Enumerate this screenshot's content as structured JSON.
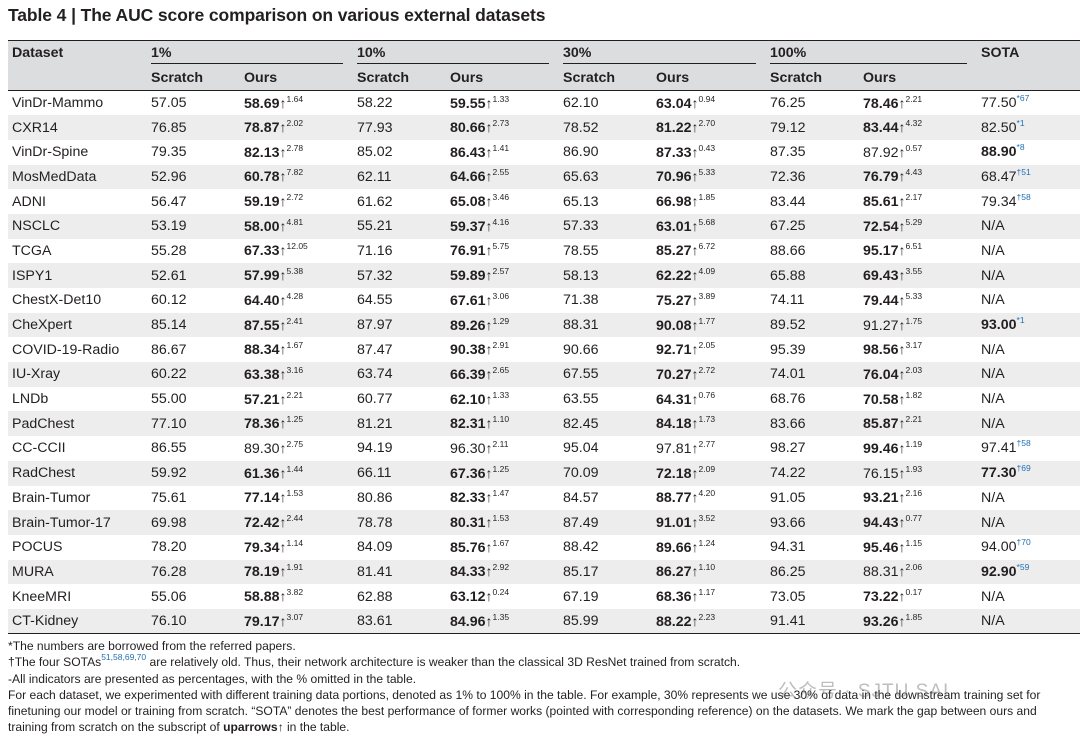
{
  "title": "Table 4 | The AUC score comparison on various external datasets",
  "header": {
    "dataset": "Dataset",
    "groups": [
      "1%",
      "10%",
      "30%",
      "100%"
    ],
    "sota": "SOTA",
    "scratch": "Scratch",
    "ours": "Ours"
  },
  "rows": [
    {
      "name": "VinDr-Mammo",
      "cells": [
        {
          "s": "57.05",
          "o": "58.69",
          "d": "1.64",
          "ob": true
        },
        {
          "s": "58.22",
          "o": "59.55",
          "d": "1.33",
          "ob": true
        },
        {
          "s": "62.10",
          "o": "63.04",
          "d": "0.94",
          "ob": true
        },
        {
          "s": "76.25",
          "o": "78.46",
          "d": "2.21",
          "ob": true
        }
      ],
      "sota": "77.50",
      "sref": "*67",
      "sb": false
    },
    {
      "name": "CXR14",
      "cells": [
        {
          "s": "76.85",
          "o": "78.87",
          "d": "2.02",
          "ob": true
        },
        {
          "s": "77.93",
          "o": "80.66",
          "d": "2.73",
          "ob": true
        },
        {
          "s": "78.52",
          "o": "81.22",
          "d": "2.70",
          "ob": true
        },
        {
          "s": "79.12",
          "o": "83.44",
          "d": "4.32",
          "ob": true
        }
      ],
      "sota": "82.50",
      "sref": "*1",
      "sb": false
    },
    {
      "name": "VinDr-Spine",
      "cells": [
        {
          "s": "79.35",
          "o": "82.13",
          "d": "2.78",
          "ob": true
        },
        {
          "s": "85.02",
          "o": "86.43",
          "d": "1.41",
          "ob": true
        },
        {
          "s": "86.90",
          "o": "87.33",
          "d": "0.43",
          "ob": true
        },
        {
          "s": "87.35",
          "o": "87.92",
          "d": "0.57",
          "ob": false
        }
      ],
      "sota": "88.90",
      "sref": "*8",
      "sb": true
    },
    {
      "name": "MosMedData",
      "cells": [
        {
          "s": "52.96",
          "o": "60.78",
          "d": "7.82",
          "ob": true
        },
        {
          "s": "62.11",
          "o": "64.66",
          "d": "2.55",
          "ob": true
        },
        {
          "s": "65.63",
          "o": "70.96",
          "d": "5.33",
          "ob": true
        },
        {
          "s": "72.36",
          "o": "76.79",
          "d": "4.43",
          "ob": true
        }
      ],
      "sota": "68.47",
      "sref": "†51",
      "sb": false
    },
    {
      "name": "ADNI",
      "cells": [
        {
          "s": "56.47",
          "o": "59.19",
          "d": "2.72",
          "ob": true
        },
        {
          "s": "61.62",
          "o": "65.08",
          "d": "3.46",
          "ob": true
        },
        {
          "s": "65.13",
          "o": "66.98",
          "d": "1.85",
          "ob": true
        },
        {
          "s": "83.44",
          "o": "85.61",
          "d": "2.17",
          "ob": true
        }
      ],
      "sota": "79.34",
      "sref": "†58",
      "sb": false
    },
    {
      "name": "NSCLC",
      "cells": [
        {
          "s": "53.19",
          "o": "58.00",
          "d": "4.81",
          "ob": true
        },
        {
          "s": "55.21",
          "o": "59.37",
          "d": "4.16",
          "ob": true
        },
        {
          "s": "57.33",
          "o": "63.01",
          "d": "5.68",
          "ob": true
        },
        {
          "s": "67.25",
          "o": "72.54",
          "d": "5.29",
          "ob": true
        }
      ],
      "sota": "N/A",
      "sref": "",
      "sb": false
    },
    {
      "name": "TCGA",
      "cells": [
        {
          "s": "55.28",
          "o": "67.33",
          "d": "12.05",
          "ob": true
        },
        {
          "s": "71.16",
          "o": "76.91",
          "d": "5.75",
          "ob": true
        },
        {
          "s": "78.55",
          "o": "85.27",
          "d": "6.72",
          "ob": true
        },
        {
          "s": "88.66",
          "o": "95.17",
          "d": "6.51",
          "ob": true
        }
      ],
      "sota": "N/A",
      "sref": "",
      "sb": false
    },
    {
      "name": "ISPY1",
      "cells": [
        {
          "s": "52.61",
          "o": "57.99",
          "d": "5.38",
          "ob": true
        },
        {
          "s": "57.32",
          "o": "59.89",
          "d": "2.57",
          "ob": true
        },
        {
          "s": "58.13",
          "o": "62.22",
          "d": "4.09",
          "ob": true
        },
        {
          "s": "65.88",
          "o": "69.43",
          "d": "3.55",
          "ob": true
        }
      ],
      "sota": "N/A",
      "sref": "",
      "sb": false
    },
    {
      "name": "ChestX-Det10",
      "cells": [
        {
          "s": "60.12",
          "o": "64.40",
          "d": "4.28",
          "ob": true
        },
        {
          "s": "64.55",
          "o": "67.61",
          "d": "3.06",
          "ob": true
        },
        {
          "s": "71.38",
          "o": "75.27",
          "d": "3.89",
          "ob": true
        },
        {
          "s": "74.11",
          "o": "79.44",
          "d": "5.33",
          "ob": true
        }
      ],
      "sota": "N/A",
      "sref": "",
      "sb": false
    },
    {
      "name": "CheXpert",
      "cells": [
        {
          "s": "85.14",
          "o": "87.55",
          "d": "2.41",
          "ob": true
        },
        {
          "s": "87.97",
          "o": "89.26",
          "d": "1.29",
          "ob": true
        },
        {
          "s": "88.31",
          "o": "90.08",
          "d": "1.77",
          "ob": true
        },
        {
          "s": "89.52",
          "o": "91.27",
          "d": "1.75",
          "ob": false
        }
      ],
      "sota": "93.00",
      "sref": "*1",
      "sb": true
    },
    {
      "name": "COVID-19-Radio",
      "cells": [
        {
          "s": "86.67",
          "o": "88.34",
          "d": "1.67",
          "ob": true
        },
        {
          "s": "87.47",
          "o": "90.38",
          "d": "2.91",
          "ob": true
        },
        {
          "s": "90.66",
          "o": "92.71",
          "d": "2.05",
          "ob": true
        },
        {
          "s": "95.39",
          "o": "98.56",
          "d": "3.17",
          "ob": true
        }
      ],
      "sota": "N/A",
      "sref": "",
      "sb": false
    },
    {
      "name": "IU-Xray",
      "cells": [
        {
          "s": "60.22",
          "o": "63.38",
          "d": "3.16",
          "ob": true
        },
        {
          "s": "63.74",
          "o": "66.39",
          "d": "2.65",
          "ob": true
        },
        {
          "s": "67.55",
          "o": "70.27",
          "d": "2.72",
          "ob": true
        },
        {
          "s": "74.01",
          "o": "76.04",
          "d": "2.03",
          "ob": true
        }
      ],
      "sota": "N/A",
      "sref": "",
      "sb": false
    },
    {
      "name": "LNDb",
      "cells": [
        {
          "s": "55.00",
          "o": "57.21",
          "d": "2.21",
          "ob": true
        },
        {
          "s": "60.77",
          "o": "62.10",
          "d": "1.33",
          "ob": true
        },
        {
          "s": "63.55",
          "o": "64.31",
          "d": "0.76",
          "ob": true
        },
        {
          "s": "68.76",
          "o": "70.58",
          "d": "1.82",
          "ob": true
        }
      ],
      "sota": "N/A",
      "sref": "",
      "sb": false
    },
    {
      "name": "PadChest",
      "cells": [
        {
          "s": "77.10",
          "o": "78.36",
          "d": "1.25",
          "ob": true
        },
        {
          "s": "81.21",
          "o": "82.31",
          "d": "1.10",
          "ob": true
        },
        {
          "s": "82.45",
          "o": "84.18",
          "d": "1.73",
          "ob": true
        },
        {
          "s": "83.66",
          "o": "85.87",
          "d": "2.21",
          "ob": true
        }
      ],
      "sota": "N/A",
      "sref": "",
      "sb": false
    },
    {
      "name": "CC-CCII",
      "cells": [
        {
          "s": "86.55",
          "o": "89.30",
          "d": "2.75",
          "ob": false
        },
        {
          "s": "94.19",
          "o": "96.30",
          "d": "2.11",
          "ob": false
        },
        {
          "s": "95.04",
          "o": "97.81",
          "d": "2.77",
          "ob": false
        },
        {
          "s": "98.27",
          "o": "99.46",
          "d": "1.19",
          "ob": true
        }
      ],
      "sota": "97.41",
      "sref": "†58",
      "sb": false
    },
    {
      "name": "RadChest",
      "cells": [
        {
          "s": "59.92",
          "o": "61.36",
          "d": "1.44",
          "ob": true
        },
        {
          "s": "66.11",
          "o": "67.36",
          "d": "1.25",
          "ob": true
        },
        {
          "s": "70.09",
          "o": "72.18",
          "d": "2.09",
          "ob": true
        },
        {
          "s": "74.22",
          "o": "76.15",
          "d": "1.93",
          "ob": false
        }
      ],
      "sota": "77.30",
      "sref": "†69",
      "sb": true
    },
    {
      "name": "Brain-Tumor",
      "cells": [
        {
          "s": "75.61",
          "o": "77.14",
          "d": "1.53",
          "ob": true
        },
        {
          "s": "80.86",
          "o": "82.33",
          "d": "1.47",
          "ob": true
        },
        {
          "s": "84.57",
          "o": "88.77",
          "d": "4.20",
          "ob": true
        },
        {
          "s": "91.05",
          "o": "93.21",
          "d": "2.16",
          "ob": true
        }
      ],
      "sota": "N/A",
      "sref": "",
      "sb": false
    },
    {
      "name": "Brain-Tumor-17",
      "cells": [
        {
          "s": "69.98",
          "o": "72.42",
          "d": "2.44",
          "ob": true
        },
        {
          "s": "78.78",
          "o": "80.31",
          "d": "1.53",
          "ob": true
        },
        {
          "s": "87.49",
          "o": "91.01",
          "d": "3.52",
          "ob": true
        },
        {
          "s": "93.66",
          "o": "94.43",
          "d": "0.77",
          "ob": true
        }
      ],
      "sota": "N/A",
      "sref": "",
      "sb": false
    },
    {
      "name": "POCUS",
      "cells": [
        {
          "s": "78.20",
          "o": "79.34",
          "d": "1.14",
          "ob": true
        },
        {
          "s": "84.09",
          "o": "85.76",
          "d": "1.67",
          "ob": true
        },
        {
          "s": "88.42",
          "o": "89.66",
          "d": "1.24",
          "ob": true
        },
        {
          "s": "94.31",
          "o": "95.46",
          "d": "1.15",
          "ob": true
        }
      ],
      "sota": "94.00",
      "sref": "†70",
      "sb": false
    },
    {
      "name": "MURA",
      "cells": [
        {
          "s": "76.28",
          "o": "78.19",
          "d": "1.91",
          "ob": true
        },
        {
          "s": "81.41",
          "o": "84.33",
          "d": "2.92",
          "ob": true
        },
        {
          "s": "85.17",
          "o": "86.27",
          "d": "1.10",
          "ob": true
        },
        {
          "s": "86.25",
          "o": "88.31",
          "d": "2.06",
          "ob": false
        }
      ],
      "sota": "92.90",
      "sref": "*59",
      "sb": true
    },
    {
      "name": "KneeMRI",
      "cells": [
        {
          "s": "55.06",
          "o": "58.88",
          "d": "3.82",
          "ob": true
        },
        {
          "s": "62.88",
          "o": "63.12",
          "d": "0.24",
          "ob": true
        },
        {
          "s": "67.19",
          "o": "68.36",
          "d": "1.17",
          "ob": true
        },
        {
          "s": "73.05",
          "o": "73.22",
          "d": "0.17",
          "ob": true
        }
      ],
      "sota": "N/A",
      "sref": "",
      "sb": false
    },
    {
      "name": "CT-Kidney",
      "cells": [
        {
          "s": "76.10",
          "o": "79.17",
          "d": "3.07",
          "ob": true
        },
        {
          "s": "83.61",
          "o": "84.96",
          "d": "1.35",
          "ob": true
        },
        {
          "s": "85.99",
          "o": "88.22",
          "d": "2.23",
          "ob": true
        },
        {
          "s": "91.41",
          "o": "93.26",
          "d": "1.85",
          "ob": true
        }
      ],
      "sota": "N/A",
      "sref": "",
      "sb": false
    }
  ],
  "notes": {
    "n1": "*The numbers are borrowed from the referred papers.",
    "n2_pre": "†The four SOTAs",
    "n2_refs": "51,58,69,70",
    "n2_post": " are relatively old. Thus, their network architecture is weaker than the classical 3D ResNet trained from scratch.",
    "n3": "-All indicators are presented as percentages, with the % omitted in the table.",
    "n4": "For each dataset, we experimented with different training data portions, denoted as 1% to 100% in the table. For example, 30% represents we use 30% of data in the downstream training set for finetuning our model or training from scratch. “SOTA” denotes the best performance of former works (pointed with corresponding reference) on the datasets. We mark the gap between ours and training from scratch on the subscript of ",
    "n4_bold": "uparrows↑",
    "n4_end": " in the table."
  },
  "watermark": "公众号 · SJTU SAI"
}
